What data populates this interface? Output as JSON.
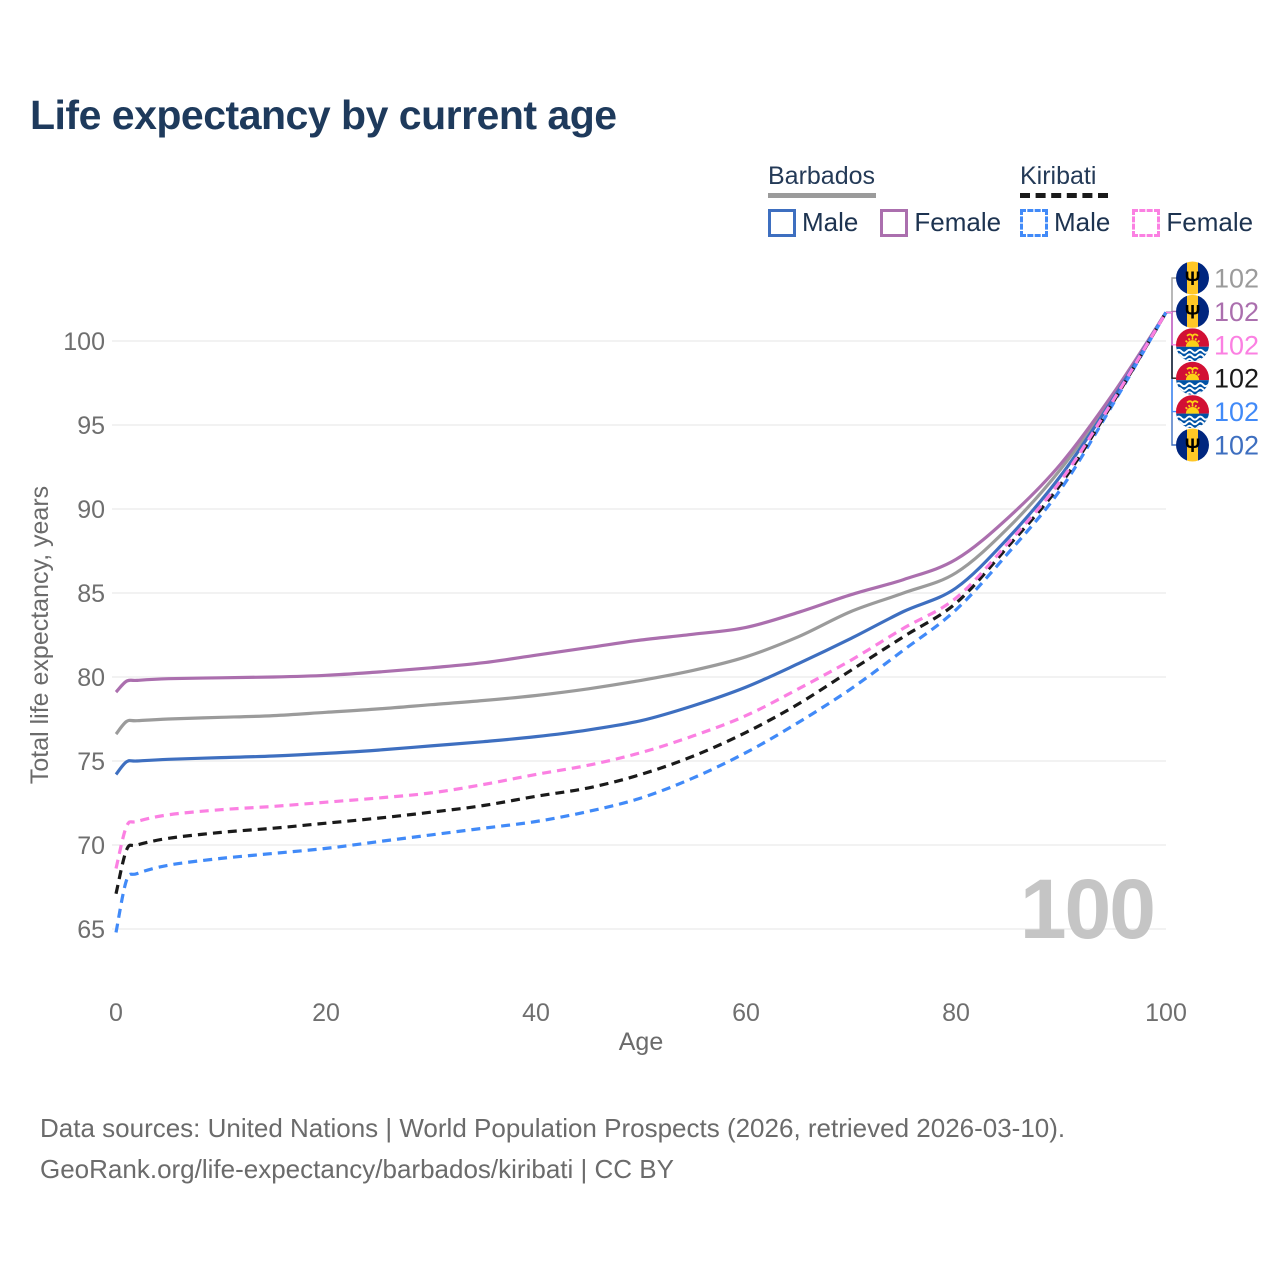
{
  "title": "Life expectancy by current age",
  "watermark": "100",
  "legend": {
    "groups": [
      {
        "label": "Barbados",
        "underline_series": 0,
        "items": [
          {
            "label": "Male",
            "series": 2
          },
          {
            "label": "Female",
            "series": 1
          }
        ]
      },
      {
        "label": "Kiribati",
        "underline_series": 4,
        "items": [
          {
            "label": "Male",
            "series": 3
          },
          {
            "label": "Female",
            "series": 5
          }
        ]
      }
    ]
  },
  "chart_data": {
    "type": "line",
    "title": "Life expectancy by current age",
    "xlabel": "Age",
    "ylabel": "Total life expectancy, years",
    "xlim": [
      0,
      100
    ],
    "ylim": [
      65,
      102
    ],
    "x_ticks": [
      0,
      20,
      40,
      60,
      80,
      100
    ],
    "y_ticks": [
      65,
      70,
      75,
      80,
      85,
      90,
      95,
      100
    ],
    "grid": "horizontal",
    "legend_position": "top-right",
    "x": [
      0,
      1,
      2,
      5,
      10,
      15,
      20,
      25,
      30,
      35,
      40,
      45,
      50,
      55,
      60,
      65,
      70,
      75,
      80,
      85,
      90,
      95,
      100
    ],
    "series": [
      {
        "name": "Barbados — All",
        "country": "Barbados",
        "sex": "All",
        "flag": "barbados",
        "color": "#9b9b9b",
        "dash": false,
        "end_row": 0,
        "end_label": "102",
        "values": [
          76.6,
          77.35,
          77.4,
          77.5,
          77.6,
          77.7,
          77.9,
          78.1,
          78.35,
          78.6,
          78.9,
          79.3,
          79.8,
          80.4,
          81.2,
          82.4,
          83.9,
          85.0,
          86.2,
          88.9,
          92.4,
          96.8,
          101.7
        ]
      },
      {
        "name": "Barbados — Female",
        "country": "Barbados",
        "sex": "Female",
        "flag": "barbados",
        "color": "#ab6fae",
        "dash": false,
        "end_row": 1,
        "end_label": "102",
        "values": [
          79.1,
          79.75,
          79.8,
          79.9,
          79.95,
          80.0,
          80.1,
          80.3,
          80.55,
          80.85,
          81.3,
          81.75,
          82.2,
          82.55,
          82.95,
          83.85,
          84.9,
          85.8,
          87.0,
          89.5,
          92.7,
          96.9,
          101.7
        ]
      },
      {
        "name": "Barbados — Male",
        "country": "Barbados",
        "sex": "Male",
        "flag": "barbados",
        "color": "#3e6fc0",
        "dash": false,
        "end_row": 5,
        "end_label": "102",
        "values": [
          74.2,
          74.95,
          75.0,
          75.1,
          75.2,
          75.3,
          75.45,
          75.65,
          75.9,
          76.15,
          76.45,
          76.85,
          77.4,
          78.3,
          79.4,
          80.8,
          82.3,
          83.9,
          85.3,
          88.3,
          92.0,
          96.6,
          101.7
        ]
      },
      {
        "name": "Kiribati — Male",
        "country": "Kiribati",
        "sex": "Male",
        "flag": "kiribati",
        "color": "#418af8",
        "dash": true,
        "end_row": 4,
        "end_label": "102",
        "values": [
          64.8,
          67.9,
          68.3,
          68.8,
          69.2,
          69.5,
          69.8,
          70.2,
          70.6,
          71.0,
          71.4,
          72.0,
          72.8,
          74.0,
          75.5,
          77.3,
          79.3,
          81.6,
          84.0,
          87.4,
          91.2,
          96.3,
          101.7
        ]
      },
      {
        "name": "Kiribati — All",
        "country": "Kiribati",
        "sex": "All",
        "flag": "kiribati",
        "color": "#1a1a1a",
        "dash": true,
        "end_row": 3,
        "end_label": "102",
        "values": [
          67.1,
          69.7,
          70.0,
          70.4,
          70.75,
          71.0,
          71.3,
          71.6,
          71.95,
          72.35,
          72.9,
          73.4,
          74.2,
          75.3,
          76.7,
          78.4,
          80.4,
          82.4,
          84.4,
          87.8,
          91.5,
          96.4,
          101.7
        ]
      },
      {
        "name": "Kiribati — Female",
        "country": "Kiribati",
        "sex": "Female",
        "flag": "kiribati",
        "color": "#fb80e2",
        "dash": true,
        "end_row": 2,
        "end_label": "102",
        "values": [
          68.6,
          71.1,
          71.4,
          71.8,
          72.1,
          72.3,
          72.55,
          72.8,
          73.1,
          73.6,
          74.2,
          74.75,
          75.5,
          76.5,
          77.7,
          79.3,
          81.0,
          82.9,
          84.7,
          88.0,
          91.7,
          96.5,
          101.7
        ]
      }
    ]
  },
  "footer": {
    "line1": "Data sources: United Nations | World Population Prospects (2026, retrieved 2026-03-10).",
    "line2": "GeoRank.org/life-expectancy/barbados/kiribati | CC BY"
  }
}
